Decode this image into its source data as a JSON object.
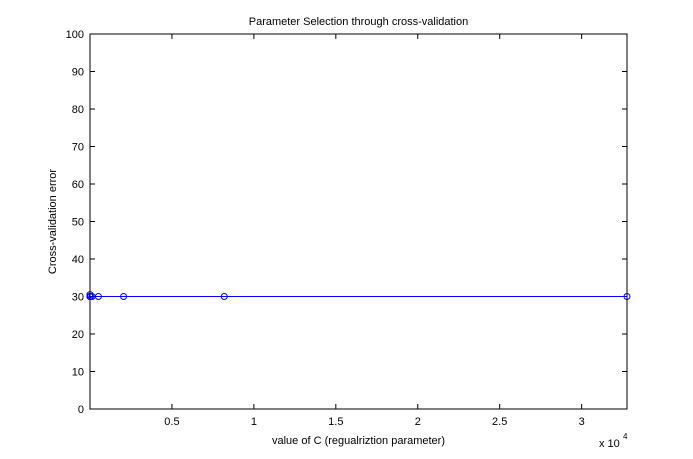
{
  "chart_data": {
    "type": "line",
    "title": "Parameter Selection through cross-validation",
    "xlabel": "value of C (regualriztion parameter)",
    "ylabel": "Cross-validation error",
    "x_multiplier_label": "x 10",
    "x_multiplier_exponent": "4",
    "xlim": [
      0,
      32768
    ],
    "ylim": [
      0,
      100
    ],
    "x_ticks": [
      {
        "value": 5000,
        "label": "0.5"
      },
      {
        "value": 10000,
        "label": "1"
      },
      {
        "value": 15000,
        "label": "1.5"
      },
      {
        "value": 20000,
        "label": "2"
      },
      {
        "value": 25000,
        "label": "2.5"
      },
      {
        "value": 30000,
        "label": "3"
      }
    ],
    "y_ticks": [
      {
        "value": 0,
        "label": "0"
      },
      {
        "value": 10,
        "label": "10"
      },
      {
        "value": 20,
        "label": "20"
      },
      {
        "value": 30,
        "label": "30"
      },
      {
        "value": 40,
        "label": "40"
      },
      {
        "value": 50,
        "label": "50"
      },
      {
        "value": 60,
        "label": "60"
      },
      {
        "value": 70,
        "label": "70"
      },
      {
        "value": 80,
        "label": "80"
      },
      {
        "value": 90,
        "label": "90"
      },
      {
        "value": 100,
        "label": "100"
      }
    ],
    "grid": false,
    "box": true,
    "series": [
      {
        "color": "#0000ff",
        "marker": "circle",
        "x": [
          0.03125,
          0.125,
          0.5,
          2,
          8,
          32,
          128,
          512,
          2048,
          8192,
          32768
        ],
        "y": [
          30.5,
          30,
          30,
          30,
          30,
          30,
          30,
          30,
          30,
          30,
          30
        ]
      }
    ]
  }
}
